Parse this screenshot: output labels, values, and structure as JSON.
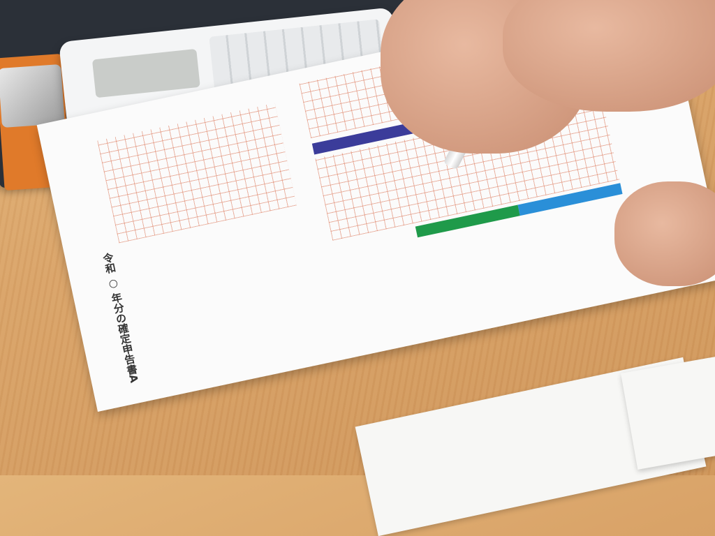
{
  "scene": {
    "description_tags": [
      "wooden-desk",
      "clipboard",
      "calculator",
      "tax-return-form",
      "hand",
      "pen",
      "receipts"
    ],
    "colors": {
      "desk": "#d9a368",
      "clipboard": "#2b3038",
      "clip_edge": "#e07a2a",
      "form_band_purple": "#3b3c9a",
      "form_band_green": "#1f9a4a",
      "form_band_blue": "#2a8fd8",
      "form_band_yellow": "#f2e14a",
      "form_band_pink": "#e0307a"
    }
  },
  "form": {
    "title": "令和 ○ 年分の確定申告書A"
  }
}
